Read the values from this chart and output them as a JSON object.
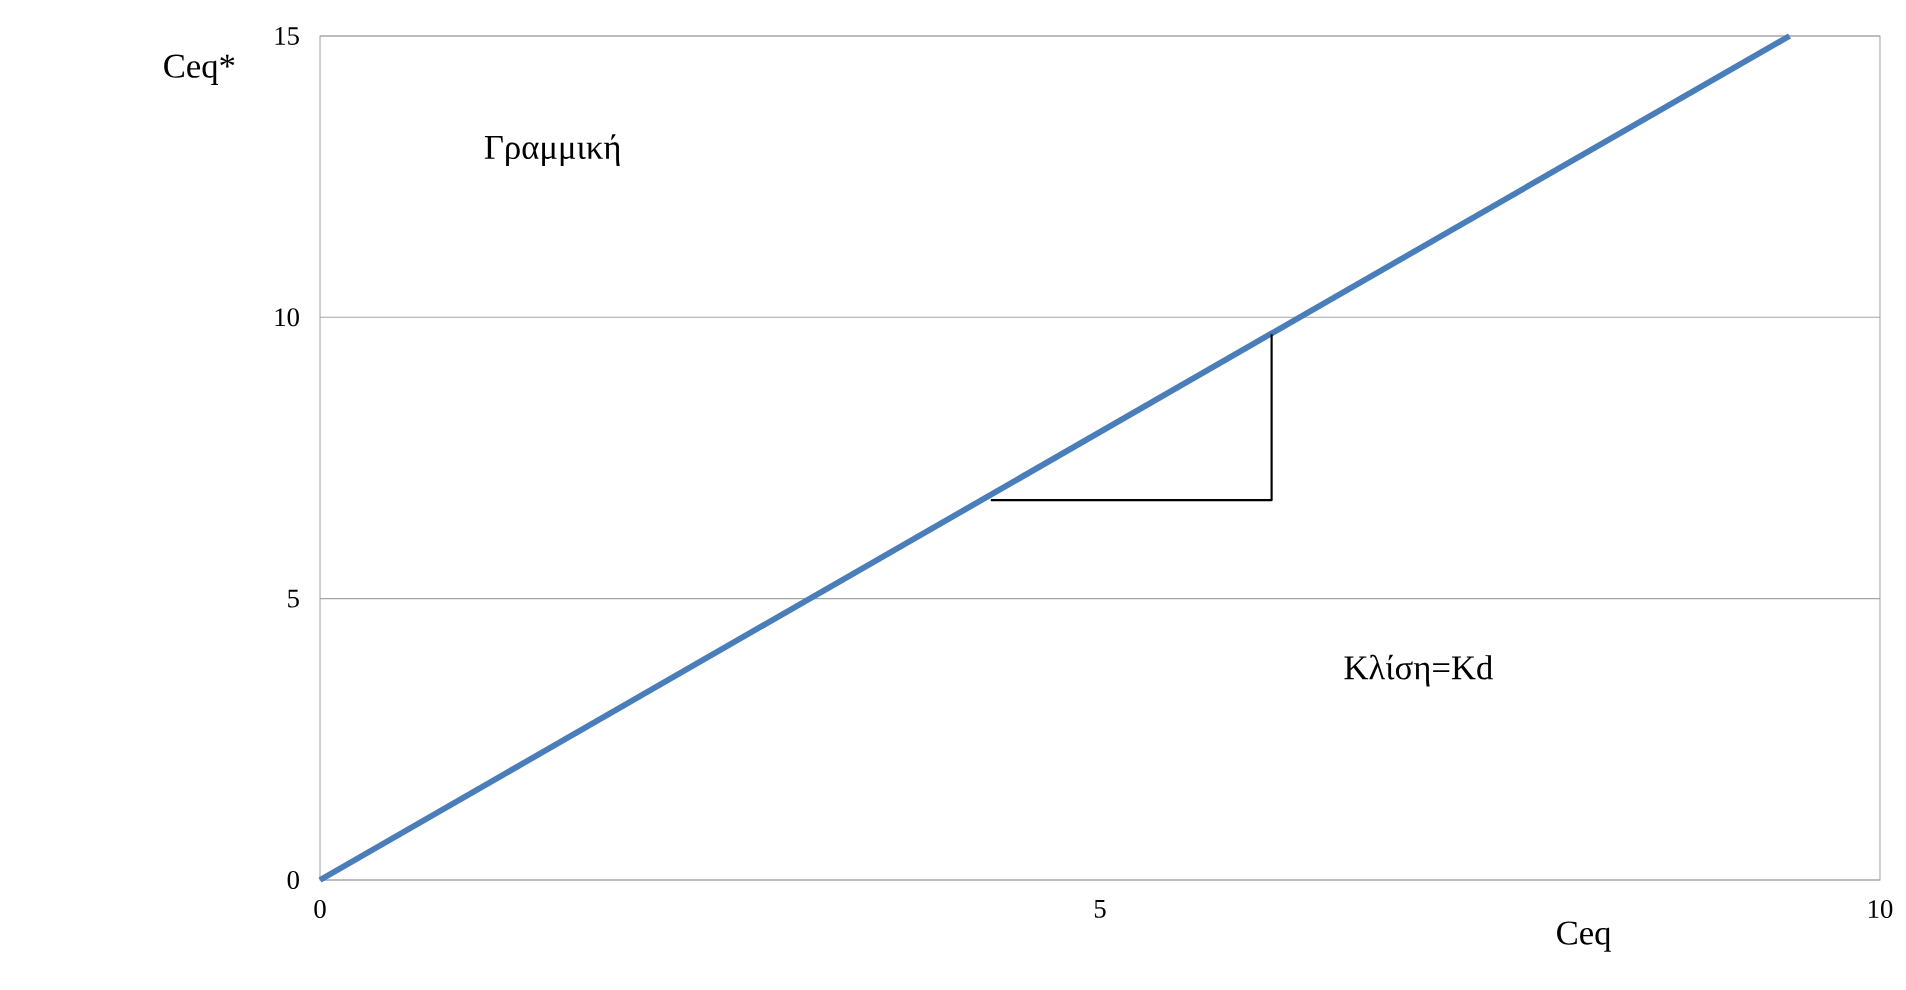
{
  "chart_data": {
    "type": "line",
    "series": [
      {
        "x": [
          0,
          9.42
        ],
        "values": [
          0,
          15
        ],
        "color": "#4a7ebb"
      },
      {
        "x": [
          4.3,
          6.1,
          6.1
        ],
        "values": [
          6.75,
          6.75,
          9.7
        ],
        "color": "#000000"
      }
    ],
    "xlim": [
      0,
      10
    ],
    "ylim": [
      0,
      15
    ],
    "xticks": [
      0,
      5,
      10
    ],
    "yticks": [
      0,
      5,
      10,
      15
    ],
    "grid": "y",
    "xlabel": "Ceq",
    "ylabel": "Ceq*",
    "annotations": [
      "Γραμμική",
      "Κλίση=Kd"
    ]
  }
}
